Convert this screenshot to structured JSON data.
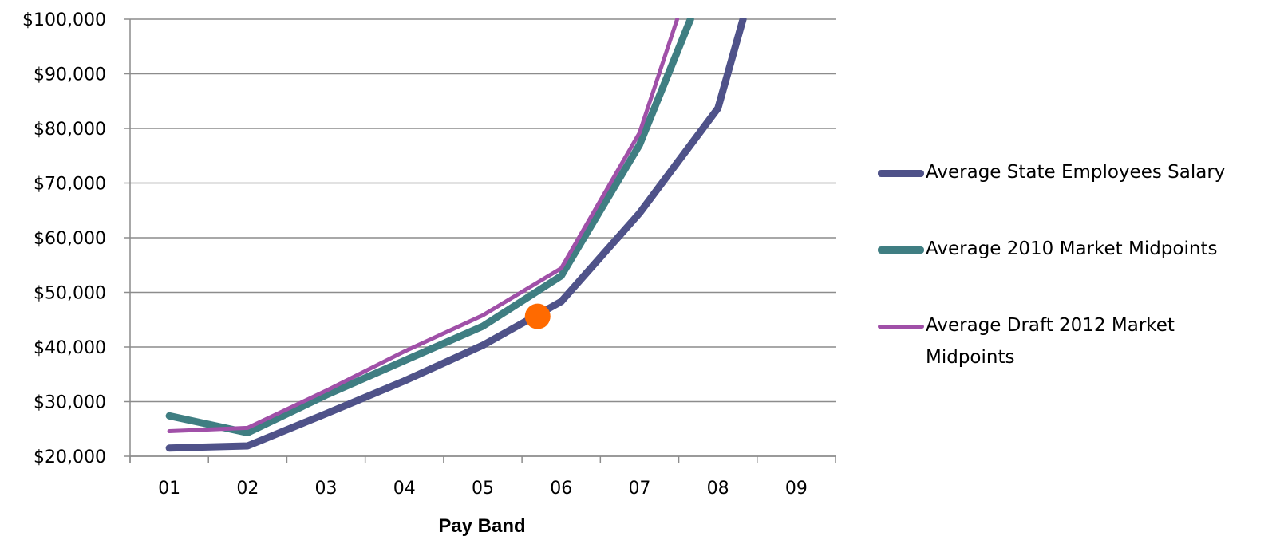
{
  "chart_data": {
    "type": "line",
    "title": "",
    "xlabel": "Pay Band",
    "ylabel": "",
    "categories": [
      "01",
      "02",
      "03",
      "04",
      "05",
      "06",
      "07",
      "08",
      "09"
    ],
    "y_tick_labels": [
      "$20,000",
      "$30,000",
      "$40,000",
      "$50,000",
      "$60,000",
      "$70,000",
      "$80,000",
      "$90,000",
      "$100,000"
    ],
    "ylim": [
      20000,
      100000
    ],
    "grid": true,
    "legend_position": "right",
    "series": [
      {
        "name": "Average State Employees Salary",
        "color": "#4f5289",
        "points": [
          [
            0.5,
            21500
          ],
          [
            1.5,
            21900
          ],
          [
            2.5,
            27800
          ],
          [
            3.5,
            33800
          ],
          [
            4.5,
            40300
          ],
          [
            5.5,
            48300
          ],
          [
            6.5,
            64500
          ],
          [
            7.5,
            83700
          ],
          [
            7.82,
            100000
          ]
        ]
      },
      {
        "name": "Average 2010 Market Midpoints",
        "color": "#3f7e82",
        "points": [
          [
            0.5,
            27400
          ],
          [
            1.5,
            24300
          ],
          [
            2.5,
            31200
          ],
          [
            3.5,
            37500
          ],
          [
            4.5,
            43800
          ],
          [
            5.5,
            53000
          ],
          [
            6.5,
            77000
          ],
          [
            7.15,
            100000
          ]
        ]
      },
      {
        "name": "Average Draft 2012 Market Midpoints",
        "color": "#a050a8",
        "points": [
          [
            0.5,
            24600
          ],
          [
            1.5,
            25200
          ],
          [
            2.5,
            32000
          ],
          [
            3.5,
            39200
          ],
          [
            4.5,
            45800
          ],
          [
            5.5,
            54400
          ],
          [
            6.5,
            79200
          ],
          [
            6.98,
            100000
          ]
        ]
      }
    ],
    "annotations": [
      {
        "type": "marker",
        "color": "#ff6a00",
        "x": 5.2,
        "y": 45600
      }
    ]
  }
}
